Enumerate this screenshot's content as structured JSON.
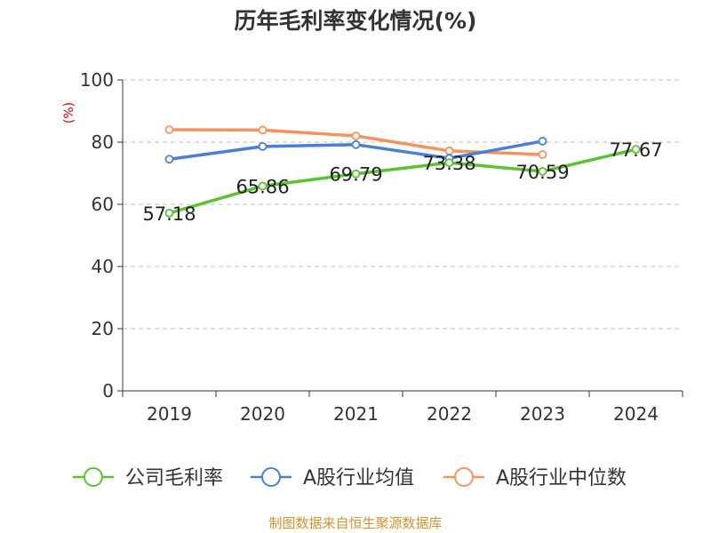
{
  "chart_data": {
    "type": "line",
    "title": "历年毛利率变化情况(%)",
    "ylabel": "(%)",
    "xlabel": "",
    "categories": [
      "2019",
      "2020",
      "2021",
      "2022",
      "2023",
      "2024"
    ],
    "ylim": [
      0,
      100
    ],
    "yticks": [
      "0",
      "20",
      "40",
      "60",
      "80",
      "100"
    ],
    "grid": true,
    "legend_position": "bottom",
    "series": [
      {
        "name": "公司毛利率",
        "color": "#5cc234",
        "values": [
          57.18,
          65.86,
          69.79,
          73.38,
          70.59,
          77.67
        ],
        "labels": [
          "57.18",
          "65.86",
          "69.79",
          "73.38",
          "70.59",
          "77.67"
        ]
      },
      {
        "name": "A股行业均值",
        "color": "#4a7fd6",
        "values": [
          74.5,
          78.6,
          79.2,
          74.8,
          80.3,
          null
        ]
      },
      {
        "name": "A股行业中位数",
        "color": "#f4935e",
        "values": [
          84.0,
          83.9,
          82.0,
          77.2,
          76.0,
          null
        ]
      }
    ]
  },
  "source": "制图数据来自恒生聚源数据库"
}
